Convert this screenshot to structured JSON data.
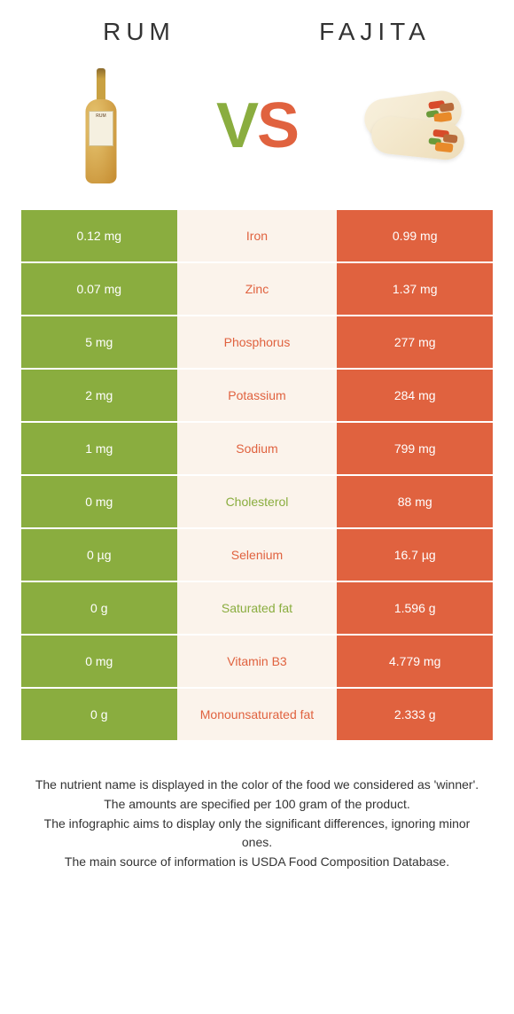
{
  "header": {
    "left_title": "Rum",
    "right_title": "Fajita",
    "vs_v": "V",
    "vs_s": "S"
  },
  "colors": {
    "left_bg": "#8aad3f",
    "right_bg": "#e0623f",
    "mid_bg": "#fbf3eb",
    "mid_text_left": "#8aad3f",
    "mid_text_right": "#e0623f"
  },
  "rows": [
    {
      "left": "0.12 mg",
      "mid": "Iron",
      "right": "0.99 mg",
      "winner": "right"
    },
    {
      "left": "0.07 mg",
      "mid": "Zinc",
      "right": "1.37 mg",
      "winner": "right"
    },
    {
      "left": "5 mg",
      "mid": "Phosphorus",
      "right": "277 mg",
      "winner": "right"
    },
    {
      "left": "2 mg",
      "mid": "Potassium",
      "right": "284 mg",
      "winner": "right"
    },
    {
      "left": "1 mg",
      "mid": "Sodium",
      "right": "799 mg",
      "winner": "right"
    },
    {
      "left": "0 mg",
      "mid": "Cholesterol",
      "right": "88 mg",
      "winner": "left"
    },
    {
      "left": "0 µg",
      "mid": "Selenium",
      "right": "16.7 µg",
      "winner": "right"
    },
    {
      "left": "0 g",
      "mid": "Saturated fat",
      "right": "1.596 g",
      "winner": "left"
    },
    {
      "left": "0 mg",
      "mid": "Vitamin B3",
      "right": "4.779 mg",
      "winner": "right"
    },
    {
      "left": "0 g",
      "mid": "Monounsaturated fat",
      "right": "2.333 g",
      "winner": "right"
    }
  ],
  "footer": {
    "line1": "The nutrient name is displayed in the color of the food we considered as 'winner'.",
    "line2": "The amounts are specified per 100 gram of the product.",
    "line3": "The infographic aims to display only the significant differences, ignoring minor ones.",
    "line4": "The main source of information is USDA Food Composition Database."
  },
  "bottle_label": "RUM"
}
